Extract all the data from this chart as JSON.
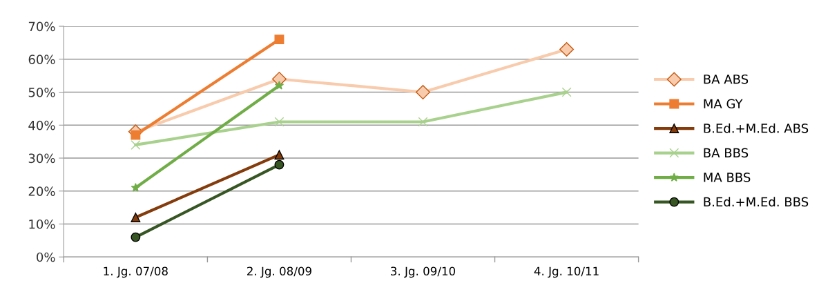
{
  "chart_data": {
    "type": "line",
    "categories": [
      "1. Jg. 07/08",
      "2. Jg. 08/09",
      "3. Jg. 09/10",
      "4. Jg. 10/11"
    ],
    "ylim": [
      0,
      70
    ],
    "yticks": [
      {
        "value": 0,
        "label": "0%"
      },
      {
        "value": 10,
        "label": "10%"
      },
      {
        "value": 20,
        "label": "20%"
      },
      {
        "value": 30,
        "label": "30%"
      },
      {
        "value": 40,
        "label": "40%"
      },
      {
        "value": 50,
        "label": "50%"
      },
      {
        "value": 60,
        "label": "60%"
      },
      {
        "value": 70,
        "label": "70%"
      }
    ],
    "grid": "y",
    "legend": "right",
    "series": [
      {
        "name": "BA ABS",
        "color": "#f8cbad",
        "marker": "diamond",
        "values": [
          38,
          54,
          50,
          63
        ]
      },
      {
        "name": "MA GY",
        "color": "#ed7d31",
        "marker": "square",
        "values": [
          37,
          66,
          null,
          null
        ]
      },
      {
        "name": "B.Ed.+M.Ed. ABS",
        "color": "#843c0c",
        "marker": "triangle",
        "values": [
          12,
          31,
          null,
          null
        ]
      },
      {
        "name": "BA BBS",
        "color": "#a9d18e",
        "marker": "cross",
        "values": [
          34,
          41,
          41,
          50
        ]
      },
      {
        "name": "MA BBS",
        "color": "#70ad47",
        "marker": "star",
        "values": [
          21,
          52,
          null,
          null
        ]
      },
      {
        "name": "B.Ed.+M.Ed. BBS",
        "color": "#375623",
        "marker": "circle",
        "values": [
          6,
          28,
          null,
          null
        ]
      }
    ]
  }
}
